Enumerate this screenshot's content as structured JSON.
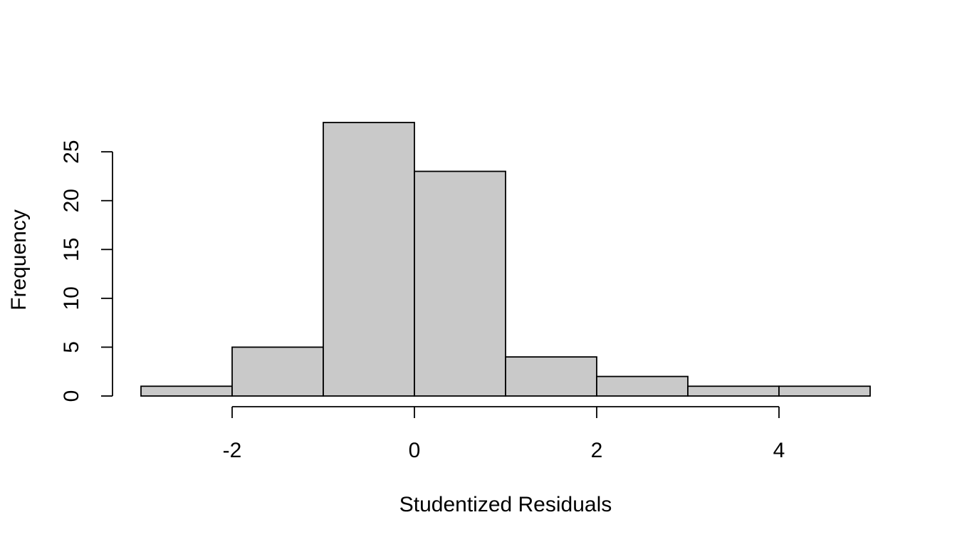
{
  "chart_data": {
    "type": "bar",
    "title": "",
    "xlabel": "Studentized Residuals",
    "ylabel": "Frequency",
    "bins": [
      {
        "x0": -3,
        "x1": -2,
        "count": 1
      },
      {
        "x0": -2,
        "x1": -1,
        "count": 5
      },
      {
        "x0": -1,
        "x1": 0,
        "count": 28
      },
      {
        "x0": 0,
        "x1": 1,
        "count": 23
      },
      {
        "x0": 1,
        "x1": 2,
        "count": 4
      },
      {
        "x0": 2,
        "x1": 3,
        "count": 2
      },
      {
        "x0": 3,
        "x1": 4,
        "count": 1
      },
      {
        "x0": 4,
        "x1": 5,
        "count": 1
      }
    ],
    "xlim": [
      -3,
      5
    ],
    "ylim": [
      0,
      28
    ],
    "x_ticks": [
      -2,
      0,
      2,
      4
    ],
    "x_tick_labels": [
      "-2",
      "0",
      "2",
      "4"
    ],
    "y_ticks": [
      0,
      5,
      10,
      15,
      20,
      25
    ],
    "y_tick_labels": [
      "0",
      "5",
      "10",
      "15",
      "20",
      "25"
    ],
    "bar_fill": "#c9c9c9",
    "grid": false,
    "legend": "none"
  }
}
